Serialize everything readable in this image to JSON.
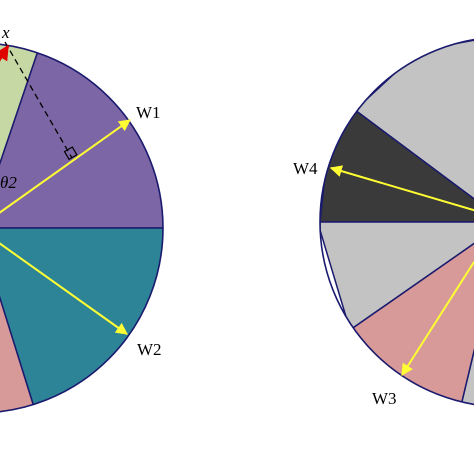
{
  "labels": {
    "x": "x",
    "theta2": "θ2",
    "w1": "W1",
    "w2": "W2",
    "w3": "W3",
    "w4": "W4"
  },
  "colors": {
    "outline": "#1a1a6e",
    "sector_green": "#c6d9a4",
    "sector_purple": "#7d66a5",
    "sector_teal": "#2e8497",
    "sector_pink": "#d89a98",
    "sector_gray": "#c3c3c3",
    "sector_dark": "#3a3a3a",
    "arrow_yellow": "#ffff33",
    "arrow_red": "#e00000",
    "dashed": "#000000"
  }
}
